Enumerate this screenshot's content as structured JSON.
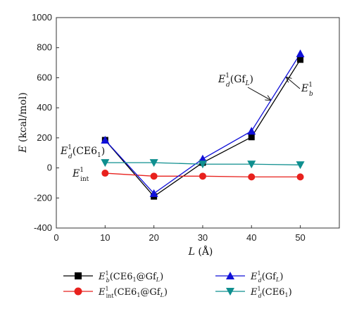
{
  "chart_data": {
    "type": "line",
    "xlabel": "L (Å)",
    "ylabel": "E (kcal/mol)",
    "xlim": [
      0,
      58
    ],
    "ylim": [
      -400,
      1000
    ],
    "x_ticks": [
      0,
      10,
      20,
      30,
      40,
      50
    ],
    "y_ticks": [
      -400,
      -200,
      0,
      200,
      400,
      600,
      800,
      1000
    ],
    "x": [
      10,
      20,
      30,
      40,
      50
    ],
    "series": [
      {
        "name": "E_b^1(CE6_1@Gf_L)",
        "color": "#000000",
        "marker": "square",
        "values": [
          185,
          -190,
          35,
          205,
          720
        ]
      },
      {
        "name": "E_int^1(CE6_1@Gf_L)",
        "color": "#e8211d",
        "marker": "circle",
        "values": [
          -35,
          -55,
          -55,
          -60,
          -60
        ]
      },
      {
        "name": "E_d^1(Gf_L)",
        "color": "#1010d8",
        "marker": "triangle-up",
        "values": [
          185,
          -170,
          60,
          245,
          760
        ]
      },
      {
        "name": "E_d^1(CE6_1)",
        "color": "#0f8f8f",
        "marker": "triangle-down",
        "values": [
          35,
          35,
          25,
          25,
          20
        ]
      }
    ],
    "annotations": [
      {
        "text": "E_d^1(Gf_L)",
        "arrow": true
      },
      {
        "text": "E_b^1",
        "arrow": true
      },
      {
        "text": "E_d^1(CE6_1)",
        "arrow": false
      },
      {
        "text": "E_int^1",
        "arrow": false
      }
    ],
    "legend_position": "bottom",
    "grid": false
  }
}
